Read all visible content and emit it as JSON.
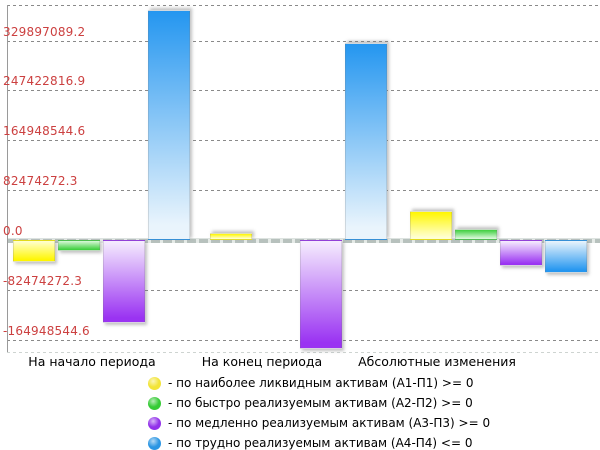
{
  "chart_data": {
    "type": "bar",
    "title": "",
    "xlabel": "",
    "ylabel": "",
    "grid": "horizontal-dashed",
    "legend_position": "bottom",
    "tick_color": "#cc4040",
    "categories": [
      "На начало периода",
      "На конец периода",
      "Абсолютные изменения"
    ],
    "series": [
      {
        "name": "по наиболее ликвидным активам (А1-П1)",
        "color": "#fff600",
        "color_light": "#ffffd2",
        "values": [
          -36900000,
          11600000,
          48500000
        ]
      },
      {
        "name": "по быстро реализуемым активам (А2-П2)",
        "color": "#3fcf3f",
        "color_light": "#d9f8d9",
        "values": [
          -17400000,
          0,
          17400000
        ]
      },
      {
        "name": "по медленно реализуемым активам (А3-П3)",
        "color": "#9a33f2",
        "color_light": "#f6edfe",
        "values": [
          -137300000,
          -179800000,
          -42500000
        ]
      },
      {
        "name": "по трудно реализуемым активам (А4-П4)",
        "color": "#2496f0",
        "color_light": "#e9f4fc",
        "values": [
          380000000,
          325300000,
          -54700000
        ]
      }
    ],
    "yticks": [
      {
        "label": "329897089.2",
        "value": 329897089.2
      },
      {
        "label": "247422816.9",
        "value": 247422816.9
      },
      {
        "label": "164948544.6",
        "value": 164948544.6
      },
      {
        "label": "82474272.3",
        "value": 82474272.3
      },
      {
        "label": "0.0",
        "value": 0
      },
      {
        "label": "-82474272.3",
        "value": -82474272.3
      },
      {
        "label": "-164948544.6",
        "value": -164948544.6
      }
    ],
    "ylim": [
      -185000000,
      389000000
    ]
  },
  "legend": {
    "items": [
      {
        "label": "- по наиболее ликвидным активам (А1-П1) >= 0",
        "color": "#f2e437"
      },
      {
        "label": "- по быстро реализуемым активам (А2-П2) >= 0",
        "color": "#35cb35"
      },
      {
        "label": "- по медленно реализуемым активам (А3-П3) >= 0",
        "color": "#9231ea"
      },
      {
        "label": "- по трудно реализуемым активам (А4-П4) <= 0",
        "color": "#2b96e3"
      }
    ]
  }
}
